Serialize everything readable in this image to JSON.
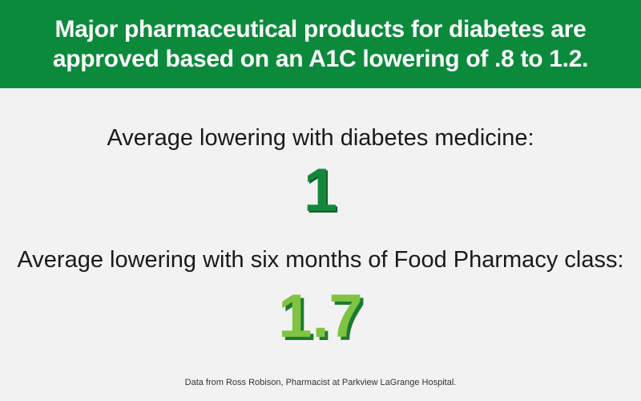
{
  "header": {
    "title": "Major pharmaceutical products for diabetes are approved based on an A1C lowering of .8 to 1.2."
  },
  "stats": [
    {
      "label": "Average lowering with diabetes medicine:",
      "value": "1"
    },
    {
      "label": "Average lowering with six months of Food Pharmacy class:",
      "value": "1.7"
    }
  ],
  "source": "Data from Ross Robison, Pharmacist at Parkview LaGrange Hospital."
}
